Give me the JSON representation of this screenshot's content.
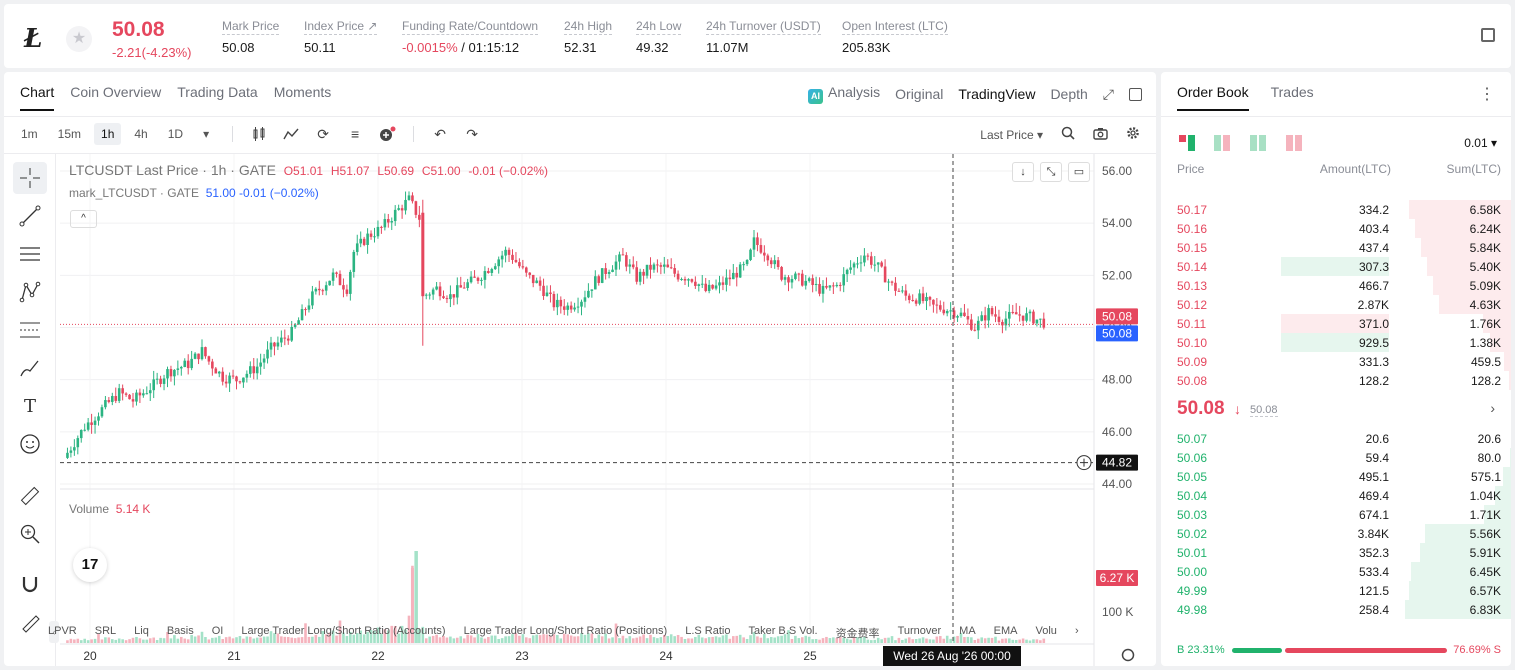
{
  "header": {
    "last_price": "50.08",
    "change": "-2.21(-4.23%)",
    "stats": [
      {
        "label": "Mark Price",
        "value": "50.08"
      },
      {
        "label": "Index Price ↗",
        "value": "50.11"
      },
      {
        "label": "Funding Rate/Countdown",
        "value_neg": "-0.0015%",
        "value": " / 01:15:12"
      },
      {
        "label": "24h High",
        "value": "52.31"
      },
      {
        "label": "24h Low",
        "value": "49.32"
      },
      {
        "label": "24h Turnover (USDT)",
        "value": "11.07M"
      },
      {
        "label": "Open Interest (LTC)",
        "value": "205.83K"
      }
    ],
    "coin_glyph": "Ł",
    "star": "★"
  },
  "chart_tabs": [
    "Chart",
    "Coin Overview",
    "Trading Data",
    "Moments"
  ],
  "view_tabs": {
    "analysis": "Analysis",
    "ai": "AI",
    "original": "Original",
    "tradingview": "TradingView",
    "depth": "Depth"
  },
  "toolbar": {
    "timeframes": [
      "1m",
      "15m",
      "1h",
      "4h",
      "1D"
    ],
    "dropdown": "▾",
    "price_type": "Last Price ▾"
  },
  "legend": {
    "symbol": "LTCUSDT Last Price · 1h · GATE",
    "o": "O51.01",
    "h": "H51.07",
    "l": "L50.69",
    "c": "C51.00",
    "chg": "-0.01 (−0.02%)",
    "mark_name": "mark_LTCUSDT · GATE",
    "mark_val": "51.00  -0.01  (−0.02%)",
    "collapse": "^"
  },
  "volume_legend": {
    "label": "Volume",
    "value": "5.14 K"
  },
  "tv_logo": "17",
  "chart_data": {
    "type": "candlestick",
    "y_ticks": [
      "56.00",
      "54.00",
      "52.00",
      "50.00",
      "48.00",
      "46.00",
      "44.00"
    ],
    "ylim": [
      44,
      56
    ],
    "volume_ticks": [
      "100 K"
    ],
    "x_ticks": [
      "20",
      "21",
      "22",
      "23",
      "24",
      "25"
    ],
    "last_price_label": "50.08",
    "mark_price_label": "50.08",
    "crosshair_price": "44.82",
    "crosshair_time": "Wed 26 Aug '26   00:00",
    "volume_label": "6.27 K",
    "price_path": [
      [
        0,
        45
      ],
      [
        6,
        46.2
      ],
      [
        12,
        47
      ],
      [
        16,
        47.5
      ],
      [
        20,
        47.2
      ],
      [
        26,
        47.8
      ],
      [
        30,
        48.3
      ],
      [
        36,
        48.6
      ],
      [
        40,
        49.1
      ],
      [
        42,
        48.7
      ],
      [
        46,
        48.1
      ],
      [
        50,
        48
      ],
      [
        56,
        48.5
      ],
      [
        60,
        49.2
      ],
      [
        66,
        49.8
      ],
      [
        72,
        51.2
      ],
      [
        78,
        52
      ],
      [
        82,
        51.5
      ],
      [
        84,
        52.9
      ],
      [
        88,
        53.5
      ],
      [
        92,
        53.8
      ],
      [
        96,
        54.4
      ],
      [
        100,
        54.9
      ],
      [
        103,
        54.2
      ],
      [
        104,
        51.2
      ],
      [
        108,
        51.5
      ],
      [
        112,
        51.2
      ],
      [
        116,
        51.6
      ],
      [
        120,
        51.9
      ],
      [
        124,
        52.4
      ],
      [
        128,
        52.9
      ],
      [
        130,
        52.7
      ],
      [
        134,
        52
      ],
      [
        138,
        51.6
      ],
      [
        142,
        50.9
      ],
      [
        146,
        50.8
      ],
      [
        150,
        51.1
      ],
      [
        154,
        51.8
      ],
      [
        158,
        52.3
      ],
      [
        162,
        52.7
      ],
      [
        166,
        51.9
      ],
      [
        170,
        52.3
      ],
      [
        174,
        52.3
      ],
      [
        178,
        52
      ],
      [
        182,
        51.9
      ],
      [
        186,
        51.4
      ],
      [
        190,
        51.6
      ],
      [
        194,
        52
      ],
      [
        198,
        52.4
      ],
      [
        200,
        53.3
      ],
      [
        204,
        52.8
      ],
      [
        208,
        52
      ],
      [
        212,
        51.9
      ],
      [
        216,
        51.7
      ],
      [
        220,
        51.4
      ],
      [
        224,
        51.6
      ],
      [
        228,
        52.3
      ],
      [
        232,
        52.8
      ],
      [
        236,
        52.3
      ],
      [
        240,
        51.6
      ],
      [
        244,
        51.2
      ],
      [
        248,
        51.1
      ],
      [
        252,
        50.8
      ],
      [
        256,
        50.7
      ],
      [
        260,
        50.5
      ],
      [
        264,
        50
      ],
      [
        268,
        50.6
      ],
      [
        272,
        50.3
      ],
      [
        276,
        50.5
      ],
      [
        280,
        50.4
      ],
      [
        284,
        50.2
      ]
    ],
    "volume_bars": [
      {
        "i": 0,
        "v": 3
      },
      {
        "i": 10,
        "v": 8
      },
      {
        "i": 20,
        "v": 6
      },
      {
        "i": 30,
        "v": 9
      },
      {
        "i": 40,
        "v": 10
      },
      {
        "i": 50,
        "v": 8
      },
      {
        "i": 60,
        "v": 12
      },
      {
        "i": 70,
        "v": 20
      },
      {
        "i": 80,
        "v": 18
      },
      {
        "i": 90,
        "v": 22
      },
      {
        "i": 95,
        "v": 30
      },
      {
        "i": 100,
        "v": 28
      },
      {
        "i": 101,
        "v": 76
      },
      {
        "i": 102,
        "v": 92
      },
      {
        "i": 104,
        "v": 25
      },
      {
        "i": 110,
        "v": 12
      },
      {
        "i": 120,
        "v": 10
      },
      {
        "i": 130,
        "v": 14
      },
      {
        "i": 150,
        "v": 12
      },
      {
        "i": 160,
        "v": 22
      },
      {
        "i": 170,
        "v": 10
      },
      {
        "i": 190,
        "v": 10
      },
      {
        "i": 200,
        "v": 14
      },
      {
        "i": 210,
        "v": 12
      },
      {
        "i": 220,
        "v": 8
      },
      {
        "i": 240,
        "v": 6
      },
      {
        "i": 250,
        "v": 8
      },
      {
        "i": 260,
        "v": 12
      },
      {
        "i": 270,
        "v": 6
      },
      {
        "i": 280,
        "v": 4
      }
    ]
  },
  "indicators": [
    "LPVR",
    "SRL",
    "Liq",
    "Basis",
    "OI",
    "Large Trader Long/Short Ratio (Accounts)",
    "Large Trader Long/Short Ratio (Positions)",
    "L.S Ratio",
    "Taker B.S Vol.",
    "资金费率",
    "Turnover",
    "MA",
    "EMA",
    "Volu",
    "›"
  ],
  "orderbook": {
    "tabs": [
      "Order Book",
      "Trades"
    ],
    "precision": "0.01 ▾",
    "headers": {
      "price": "Price",
      "amount": "Amount(LTC)",
      "sum": "Sum(LTC)"
    },
    "asks": [
      {
        "price": "50.17",
        "amount": "334.2",
        "sum": "6.58K",
        "sum_pct": 0.96,
        "amt_pct": 0.03
      },
      {
        "price": "50.16",
        "amount": "403.4",
        "sum": "6.24K",
        "sum_pct": 0.91,
        "amt_pct": 0.04
      },
      {
        "price": "50.15",
        "amount": "437.4",
        "sum": "5.84K",
        "sum_pct": 0.85,
        "amt_pct": 0.05
      },
      {
        "price": "50.14",
        "amount": "307.3",
        "sum": "5.40K",
        "sum_pct": 0.79,
        "amt_pct": 0.0
      },
      {
        "price": "50.13",
        "amount": "466.7",
        "sum": "5.09K",
        "sum_pct": 0.74,
        "amt_pct": 0.05
      },
      {
        "price": "50.12",
        "amount": "2.87K",
        "sum": "4.63K",
        "sum_pct": 0.68,
        "amt_pct": 0.0
      },
      {
        "price": "50.11",
        "amount": "371.0",
        "sum": "1.76K",
        "sum_pct": 0.26,
        "amt_pct": 0.0
      },
      {
        "price": "50.10",
        "amount": "929.5",
        "sum": "1.38K",
        "sum_pct": 0.2,
        "amt_pct": 0.0
      },
      {
        "price": "50.09",
        "amount": "331.3",
        "sum": "459.5",
        "sum_pct": 0.07,
        "amt_pct": 0.0
      },
      {
        "price": "50.08",
        "amount": "128.2",
        "sum": "128.2",
        "sum_pct": 0.02,
        "amt_pct": 0.0
      }
    ],
    "ask_highlights": {
      "3": "green",
      "6": "red",
      "7": "green"
    },
    "mid": {
      "price": "50.08",
      "arrow": "↓",
      "mark": "50.08",
      "chevron": "›"
    },
    "bids": [
      {
        "price": "50.07",
        "amount": "20.6",
        "sum": "20.6",
        "sum_pct": 0.0
      },
      {
        "price": "50.06",
        "amount": "59.4",
        "sum": "80.0",
        "sum_pct": 0.01
      },
      {
        "price": "50.05",
        "amount": "495.1",
        "sum": "575.1",
        "sum_pct": 0.08
      },
      {
        "price": "50.04",
        "amount": "469.4",
        "sum": "1.04K",
        "sum_pct": 0.15
      },
      {
        "price": "50.03",
        "amount": "674.1",
        "sum": "1.71K",
        "sum_pct": 0.25
      },
      {
        "price": "50.02",
        "amount": "3.84K",
        "sum": "5.56K",
        "sum_pct": 0.81
      },
      {
        "price": "50.01",
        "amount": "352.3",
        "sum": "5.91K",
        "sum_pct": 0.86
      },
      {
        "price": "50.00",
        "amount": "533.4",
        "sum": "6.45K",
        "sum_pct": 0.94
      },
      {
        "price": "49.99",
        "amount": "121.5",
        "sum": "6.57K",
        "sum_pct": 0.96
      },
      {
        "price": "49.98",
        "amount": "258.4",
        "sum": "6.83K",
        "sum_pct": 1.0
      }
    ],
    "ratio": {
      "buy": "B 23.31%",
      "sell": "76.69% S",
      "buy_pct": 0.2331
    }
  }
}
